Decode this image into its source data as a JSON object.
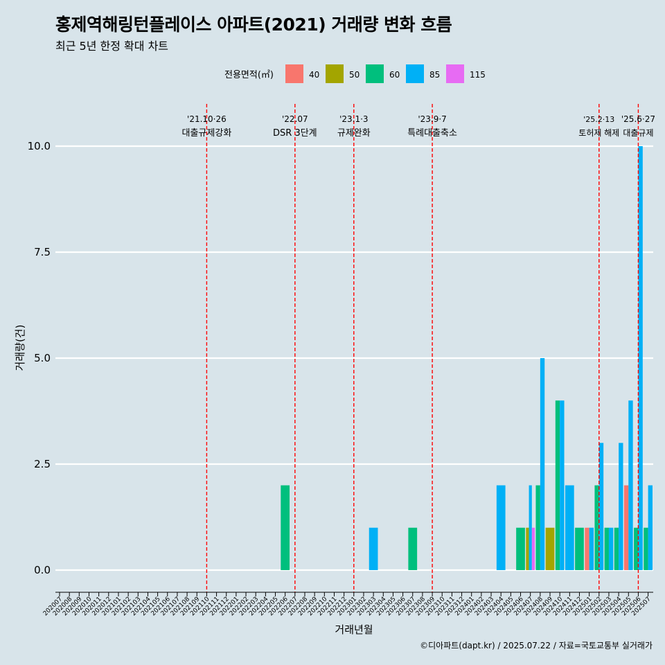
{
  "chart_data": {
    "type": "bar",
    "title": "홍제역해링턴플레이스 아파트(2021) 거래량 변화 흐름",
    "subtitle": "최근 5년 한정 확대 차트",
    "xlabel": "거래년월",
    "ylabel": "거래량(건)",
    "caption": "©디아파트(dapt.kr) / 2025.07.22 / 자료=국토교통부 실거래가",
    "legend_title": "전용면적(㎡)",
    "legend_position": "top",
    "ylim": [
      0,
      10
    ],
    "yticks": [
      "0.0",
      "2.5",
      "5.0",
      "7.5",
      "10.0"
    ],
    "grid": true,
    "categories": [
      "202007",
      "202008",
      "202009",
      "202010",
      "202011",
      "202012",
      "202101",
      "202102",
      "202103",
      "202104",
      "202105",
      "202106",
      "202107",
      "202108",
      "202109",
      "202110",
      "202111",
      "202112",
      "202201",
      "202202",
      "202203",
      "202204",
      "202205",
      "202206",
      "202207",
      "202208",
      "202209",
      "202210",
      "202211",
      "202212",
      "202301",
      "202302",
      "202303",
      "202304",
      "202305",
      "202306",
      "202307",
      "202308",
      "202309",
      "202310",
      "202311",
      "202312",
      "202401",
      "202402",
      "202403",
      "202404",
      "202405",
      "202406",
      "202407",
      "202408",
      "202409",
      "202410",
      "202411",
      "202412",
      "202501",
      "202502",
      "202503",
      "202504",
      "202505",
      "202506",
      "202507"
    ],
    "series": [
      {
        "name": "40",
        "color": "#f8766d",
        "values": {
          "202501": 1,
          "202505": 2
        }
      },
      {
        "name": "50",
        "color": "#a3a500",
        "values": {
          "202407": 1,
          "202409": 1
        }
      },
      {
        "name": "60",
        "color": "#00bf7d",
        "values": {
          "202206": 2,
          "202307": 1,
          "202406": 1,
          "202408": 2,
          "202410": 4,
          "202412": 1,
          "202502": 2,
          "202503": 1,
          "202504": 1,
          "202506": 1,
          "202507": 1
        }
      },
      {
        "name": "85",
        "color": "#00b0f6",
        "values": {
          "202303": 1,
          "202404": 2,
          "202407": 2,
          "202408": 5,
          "202410": 4,
          "202411": 2,
          "202501": 1,
          "202502": 3,
          "202503": 1,
          "202504": 3,
          "202505": 4,
          "202506": 10,
          "202507": 2
        }
      },
      {
        "name": "115",
        "color": "#e76bf3",
        "values": {
          "202407": 1
        }
      }
    ],
    "annotations": [
      {
        "at": "202110",
        "date": "'21.10·26",
        "label": "대출규제강화"
      },
      {
        "at": "202207",
        "date": "'22.07",
        "label": "DSR 3단계"
      },
      {
        "at": "202301",
        "date": "'23.1·3",
        "label": "규제완화"
      },
      {
        "at": "202309",
        "date": "'23.9·7",
        "label": "특례대출축소"
      },
      {
        "at": "202502",
        "date": "'25.2·13",
        "label": "토허제 해제"
      },
      {
        "at": "202506",
        "date": "'25.6·27",
        "label": "대출규제"
      }
    ]
  }
}
